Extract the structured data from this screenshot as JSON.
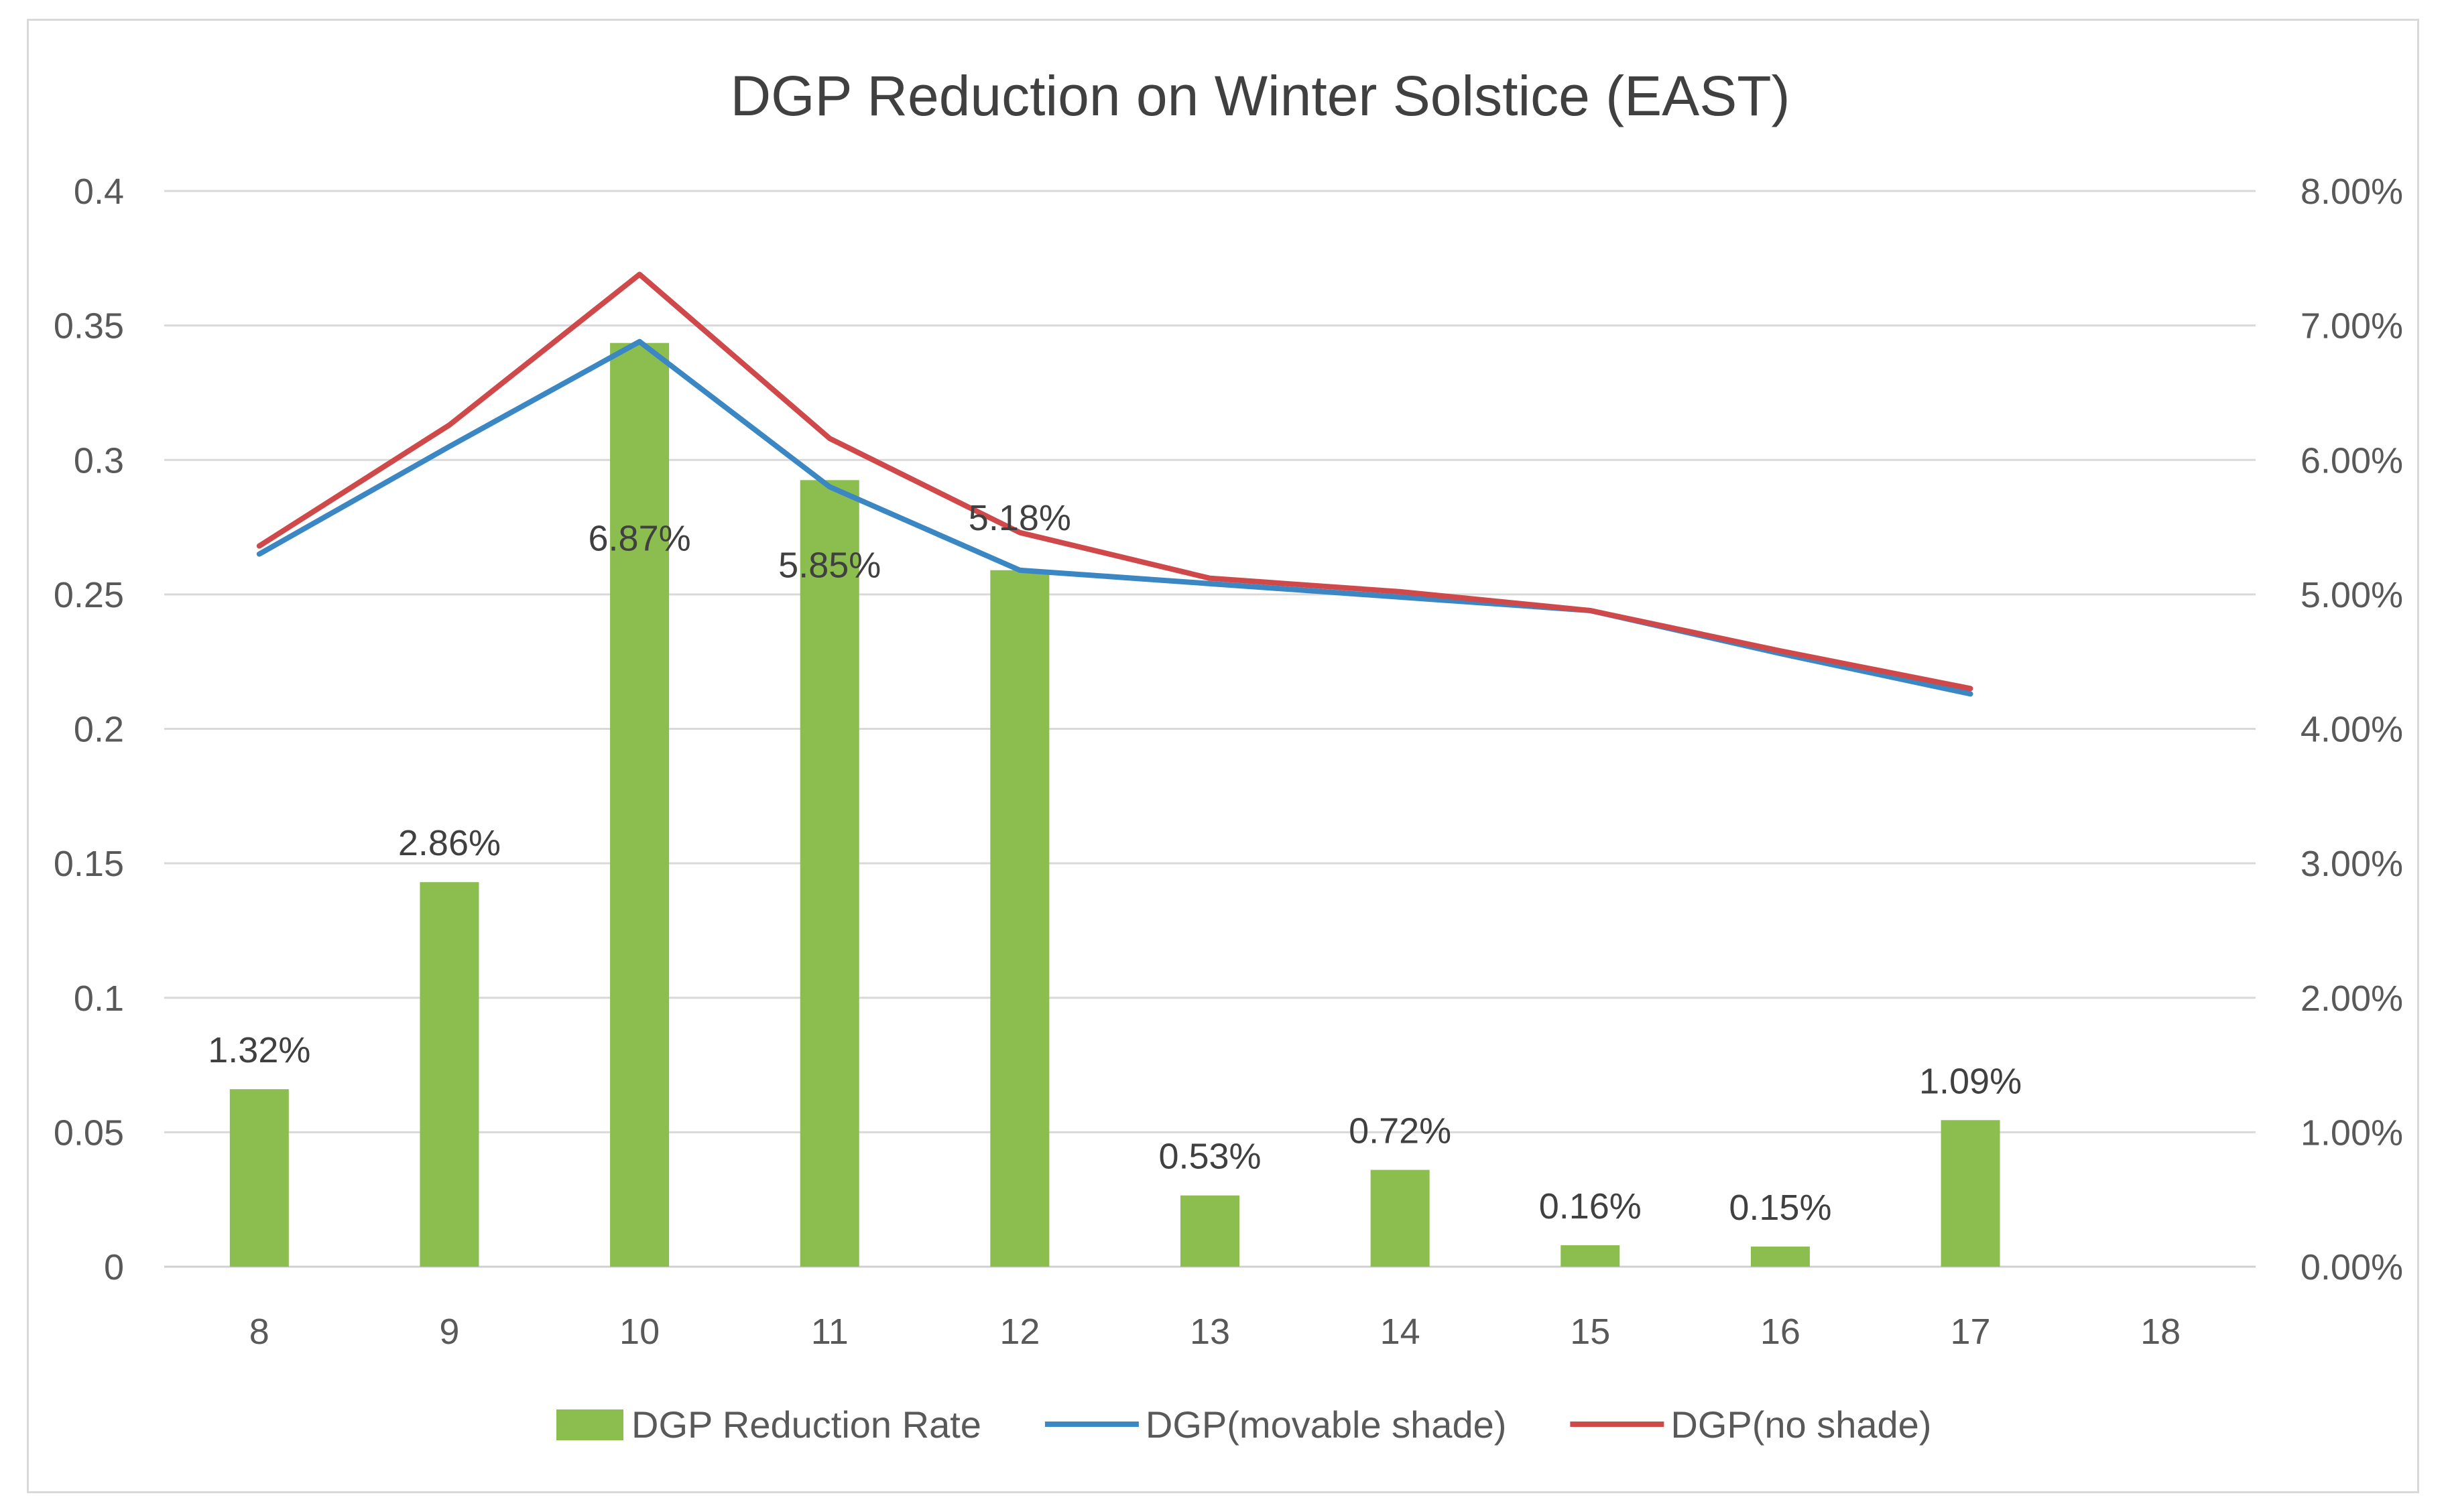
{
  "chart_data": {
    "type": "bar+line (dual axis)",
    "title": "DGP Reduction on Winter Solstice (EAST)",
    "categories": [
      "8",
      "9",
      "10",
      "11",
      "12",
      "13",
      "14",
      "15",
      "16",
      "17",
      "18"
    ],
    "left_axis": {
      "ylim": [
        0,
        0.4
      ],
      "ticks": [
        "0",
        "0.05",
        "0.1",
        "0.15",
        "0.2",
        "0.25",
        "0.3",
        "0.35",
        "0.4"
      ]
    },
    "right_axis": {
      "ylim": [
        0,
        0.08
      ],
      "ticks": [
        "0.00%",
        "1.00%",
        "2.00%",
        "3.00%",
        "4.00%",
        "5.00%",
        "6.00%",
        "7.00%",
        "8.00%"
      ]
    },
    "series": [
      {
        "name": "DGP Reduction Rate",
        "type": "bar",
        "axis": "right",
        "color": "#8BBD4F",
        "values": [
          0.0132,
          0.0286,
          0.0687,
          0.0585,
          0.0518,
          0.0053,
          0.0072,
          0.0016,
          0.0015,
          0.0109,
          null
        ],
        "labels": [
          "1.32%",
          "2.86%",
          "6.87%",
          "5.85%",
          "5.18%",
          "0.53%",
          "0.72%",
          "0.16%",
          "0.15%",
          "1.09%",
          ""
        ]
      },
      {
        "name": "DGP(movable shade)",
        "type": "line",
        "axis": "left",
        "color": "#3A87C4",
        "values": [
          0.265,
          0.305,
          0.344,
          0.29,
          0.259,
          0.254,
          0.249,
          0.244,
          0.228,
          0.213,
          null
        ]
      },
      {
        "name": "DGP(no shade)",
        "type": "line",
        "axis": "left",
        "color": "#D0494A",
        "values": [
          0.268,
          0.313,
          0.369,
          0.308,
          0.273,
          0.256,
          0.251,
          0.244,
          0.229,
          0.215,
          null
        ]
      }
    ],
    "legend_position": "bottom"
  }
}
